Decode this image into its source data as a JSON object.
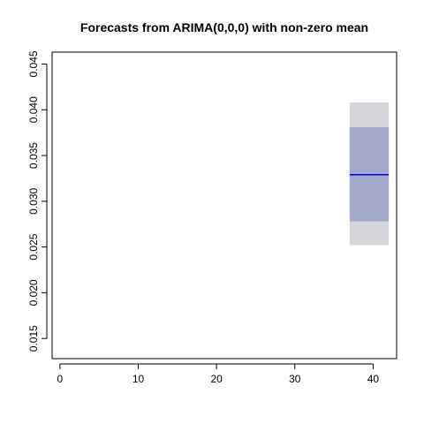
{
  "chart_data": {
    "type": "line",
    "title": "Forecasts from ARIMA(0,0,0) with non-zero mean",
    "xlabel": "",
    "ylabel": "",
    "xlim": [
      -1,
      43
    ],
    "ylim": [
      0.0128,
      0.0463
    ],
    "x_ticks": [
      0,
      10,
      20,
      30,
      40
    ],
    "x_tick_labels": [
      "0",
      "10",
      "20",
      "30",
      "40"
    ],
    "y_ticks": [
      0.015,
      0.02,
      0.025,
      0.03,
      0.035,
      0.04,
      0.045
    ],
    "y_tick_labels": [
      "0.015",
      "0.020",
      "0.025",
      "0.030",
      "0.035",
      "0.040",
      "0.045"
    ],
    "grid": false,
    "legend": "none",
    "forecast": {
      "x_start": 37,
      "x_end": 42,
      "mean": 0.0329,
      "interval_80": [
        0.0278,
        0.0381
      ],
      "interval_95": [
        0.0252,
        0.0408
      ]
    },
    "colors": {
      "mean_line": "#0000ff",
      "interval_80": "#a5a9c9",
      "interval_95": "#d5d5dc"
    }
  }
}
